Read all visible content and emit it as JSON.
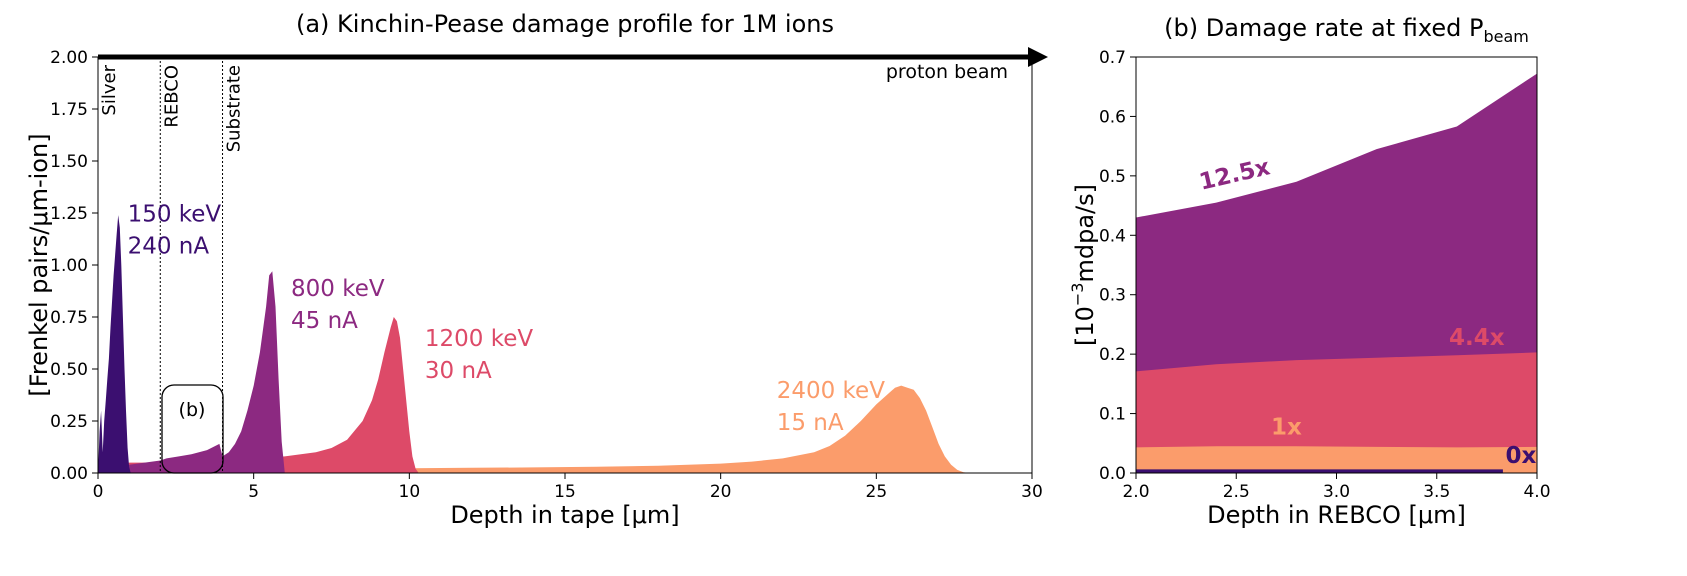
{
  "chart_data": [
    {
      "type": "area",
      "title": "(a) Kinchin-Pease damage profile for 1M ions",
      "xlabel": "Depth in tape [μm]",
      "ylabel": "[Frenkel pairs/μm-ion]",
      "xlim": [
        0,
        30
      ],
      "ylim": [
        0,
        2.0
      ],
      "x_ticks": [
        0,
        5,
        10,
        15,
        20,
        25,
        30
      ],
      "x_tick_labels": [
        "0",
        "5",
        "10",
        "15",
        "20",
        "25",
        "30"
      ],
      "y_ticks": [
        0,
        0.25,
        0.5,
        0.75,
        1.0,
        1.25,
        1.5,
        1.75,
        2.0
      ],
      "y_tick_labels": [
        "0.00",
        "0.25",
        "0.50",
        "0.75",
        "1.00",
        "1.25",
        "1.50",
        "1.75",
        "2.00"
      ],
      "grid": false,
      "legend": "none",
      "layer_boundaries": [
        2.0,
        4.0
      ],
      "layers": [
        {
          "name": "Silver",
          "x": 1.0
        },
        {
          "name": "REBCO",
          "x": 3.0
        },
        {
          "name": "Substrate",
          "x": 5.0
        }
      ],
      "beam_label": "proton beam",
      "inset_label": "(b)",
      "series": [
        {
          "label_lines": [
            "2400 keV",
            "15 nA"
          ],
          "color": "#fb9c6b",
          "label_pos": [
            21.8,
            0.36
          ],
          "x": [
            0,
            0.5,
            1,
            2,
            3,
            4,
            6,
            8,
            10,
            12,
            14,
            16,
            18,
            20,
            21,
            22,
            23,
            23.5,
            24,
            24.5,
            25,
            25.3,
            25.6,
            25.8,
            26.0,
            26.2,
            26.4,
            26.6,
            26.8,
            27.0,
            27.2,
            27.4,
            27.6,
            27.8,
            28.0
          ],
          "y": [
            0.005,
            0.01,
            0.015,
            0.017,
            0.019,
            0.02,
            0.021,
            0.022,
            0.023,
            0.025,
            0.027,
            0.03,
            0.035,
            0.045,
            0.055,
            0.07,
            0.1,
            0.13,
            0.18,
            0.25,
            0.33,
            0.37,
            0.41,
            0.42,
            0.41,
            0.4,
            0.36,
            0.3,
            0.22,
            0.14,
            0.08,
            0.04,
            0.015,
            0.004,
            0.0
          ]
        },
        {
          "label_lines": [
            "1200 keV",
            "30 nA"
          ],
          "color": "#dd4a68",
          "label_pos": [
            10.5,
            0.61
          ],
          "x": [
            0,
            0.3,
            0.6,
            1,
            1.5,
            2,
            2.5,
            3,
            3.5,
            4,
            4.5,
            5,
            6,
            7,
            7.5,
            8,
            8.5,
            8.8,
            9.0,
            9.2,
            9.4,
            9.5,
            9.6,
            9.7,
            9.8,
            9.9,
            10.0,
            10.1,
            10.2,
            10.3
          ],
          "y": [
            0.01,
            0.03,
            0.04,
            0.05,
            0.05,
            0.05,
            0.052,
            0.055,
            0.057,
            0.06,
            0.065,
            0.07,
            0.08,
            0.1,
            0.12,
            0.16,
            0.25,
            0.35,
            0.45,
            0.58,
            0.7,
            0.75,
            0.73,
            0.65,
            0.5,
            0.35,
            0.2,
            0.08,
            0.02,
            0.0
          ]
        },
        {
          "label_lines": [
            "800 keV",
            "45 nA"
          ],
          "color": "#8c2981",
          "label_pos": [
            6.2,
            0.85
          ],
          "x": [
            0,
            0.3,
            0.6,
            1,
            1.5,
            2,
            2.2,
            2.6,
            3,
            3.5,
            3.9,
            4.0,
            4.2,
            4.4,
            4.6,
            4.8,
            5.0,
            5.2,
            5.4,
            5.5,
            5.6,
            5.7,
            5.8,
            5.9,
            6.0
          ],
          "y": [
            0.01,
            0.02,
            0.03,
            0.04,
            0.05,
            0.06,
            0.07,
            0.08,
            0.09,
            0.11,
            0.14,
            0.08,
            0.1,
            0.14,
            0.2,
            0.3,
            0.42,
            0.58,
            0.8,
            0.95,
            0.97,
            0.8,
            0.45,
            0.15,
            0.0
          ]
        },
        {
          "label_lines": [
            "150 keV",
            "240 nA"
          ],
          "color": "#3b0f70",
          "label_pos": [
            0.95,
            1.21
          ],
          "x": [
            0,
            0.05,
            0.1,
            0.15,
            0.2,
            0.25,
            0.3,
            0.35,
            0.4,
            0.5,
            0.6,
            0.65,
            0.7,
            0.75,
            0.8,
            0.85,
            0.9,
            0.95,
            1.0,
            1.05
          ],
          "y": [
            0.0,
            0.2,
            0.3,
            0.1,
            0.25,
            0.35,
            0.45,
            0.55,
            0.7,
            0.95,
            1.15,
            1.24,
            1.18,
            1.0,
            0.75,
            0.5,
            0.3,
            0.12,
            0.03,
            0.0
          ]
        }
      ]
    },
    {
      "type": "area",
      "title_main": "(b) Damage rate at fixed P",
      "title_sub": "beam",
      "xlabel": "Depth in REBCO [μm]",
      "ylabel_base": "[10",
      "ylabel_sup": "−3",
      "ylabel_rest": "mdpa/s]",
      "xlim": [
        2.0,
        4.0
      ],
      "ylim": [
        0,
        0.7
      ],
      "x_ticks": [
        2.0,
        2.5,
        3.0,
        3.5,
        4.0
      ],
      "x_tick_labels": [
        "2.0",
        "2.5",
        "3.0",
        "3.5",
        "4.0"
      ],
      "y_ticks": [
        0,
        0.1,
        0.2,
        0.3,
        0.4,
        0.5,
        0.6,
        0.7
      ],
      "y_tick_labels": [
        "0.0",
        "0.1",
        "0.2",
        "0.3",
        "0.4",
        "0.5",
        "0.6",
        "0.7"
      ],
      "grid": false,
      "legend": "none",
      "series": [
        {
          "name": "12.5x",
          "color": "#8c2981",
          "label_pos": [
            2.5,
            0.49
          ],
          "label_rot": -13,
          "x": [
            2.0,
            2.4,
            2.8,
            3.2,
            3.6,
            4.0
          ],
          "y": [
            0.43,
            0.455,
            0.49,
            0.545,
            0.583,
            0.672
          ]
        },
        {
          "name": "4.4x",
          "color": "#dd4a68",
          "label_pos": [
            3.7,
            0.215
          ],
          "label_rot": 0,
          "x": [
            2.0,
            2.4,
            2.8,
            3.2,
            3.6,
            4.0
          ],
          "y": [
            0.171,
            0.183,
            0.19,
            0.194,
            0.198,
            0.203
          ]
        },
        {
          "name": "1x",
          "color": "#fb9c6b",
          "label_pos": [
            2.75,
            0.065
          ],
          "label_rot": 0,
          "x": [
            2.0,
            2.4,
            2.8,
            3.2,
            3.6,
            4.0
          ],
          "y": [
            0.043,
            0.045,
            0.045,
            0.044,
            0.043,
            0.044
          ]
        },
        {
          "name": "0x",
          "color": "#3b0f70",
          "label_pos": [
            3.92,
            0.017
          ],
          "label_rot": 0,
          "x": [
            2.0,
            3.83,
            3.83,
            4.0
          ],
          "y": [
            0.006,
            0.006,
            0.0,
            0.0
          ]
        }
      ]
    }
  ]
}
